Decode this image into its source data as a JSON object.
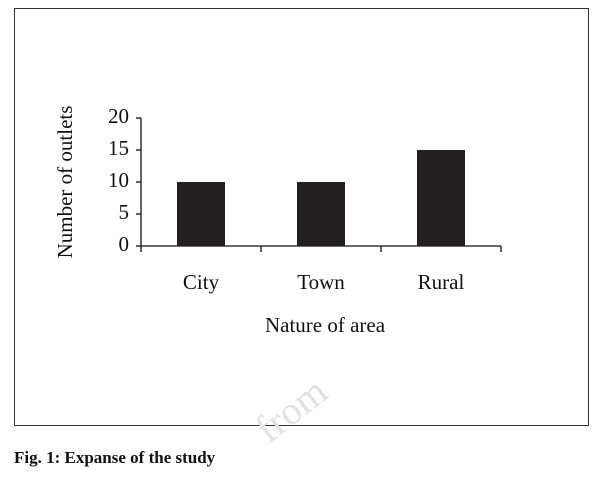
{
  "chart_data": {
    "type": "bar",
    "y_label": "Number of outlets",
    "x_label": "Nature of area",
    "categories": [
      "City",
      "Town",
      "Rural"
    ],
    "values": [
      10,
      10,
      15
    ],
    "color": "#231f20",
    "ylim": [
      0,
      20
    ],
    "yticks": [
      0,
      5,
      10,
      15,
      20
    ]
  },
  "caption": "Fig. 1: Expanse of the study",
  "watermark": "from"
}
